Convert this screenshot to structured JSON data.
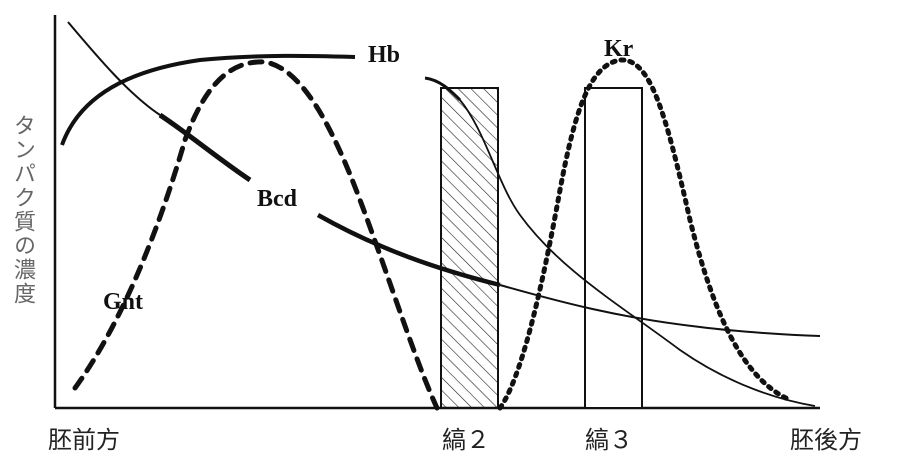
{
  "axes": {
    "y_label": "タンパク質の濃度",
    "x_left_label": "胚前方",
    "x_right_label": "胚後方"
  },
  "stripes": [
    {
      "label": "縞２",
      "pattern": "hatched"
    },
    {
      "label": "縞３",
      "pattern": "blank"
    }
  ],
  "curves": [
    {
      "name": "Hb",
      "style": "solid-bold-then-thin"
    },
    {
      "name": "Kr",
      "style": "dotted"
    },
    {
      "name": "Bcd",
      "style": "solid-bold"
    },
    {
      "name": "Gnt",
      "style": "dashed"
    }
  ],
  "colors": {
    "line": "#111111",
    "background": "#ffffff"
  }
}
